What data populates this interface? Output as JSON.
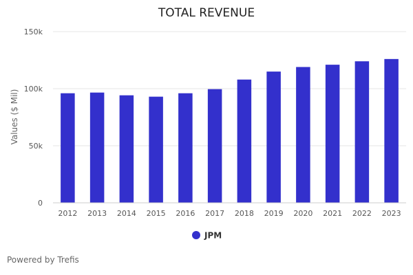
{
  "chart_data": {
    "type": "bar",
    "title": "TOTAL REVENUE",
    "ylabel": "Values ($ Mil)",
    "xlabel": "",
    "categories": [
      "2012",
      "2013",
      "2014",
      "2015",
      "2016",
      "2017",
      "2018",
      "2019",
      "2020",
      "2021",
      "2022",
      "2023"
    ],
    "series": [
      {
        "name": "JPM",
        "color": "#3330cc",
        "values": [
          96000,
          96600,
          94200,
          93000,
          96000,
          99600,
          108000,
          115000,
          119000,
          121000,
          124000,
          126000
        ]
      }
    ],
    "ylim": [
      0,
      150000
    ],
    "yticks": [
      0,
      50000,
      100000,
      150000
    ],
    "ytick_labels": [
      "0",
      "50k",
      "100k",
      "150k"
    ],
    "grid": true,
    "legend_position": "bottom-center"
  },
  "footer": {
    "text": "Powered by Trefis"
  }
}
